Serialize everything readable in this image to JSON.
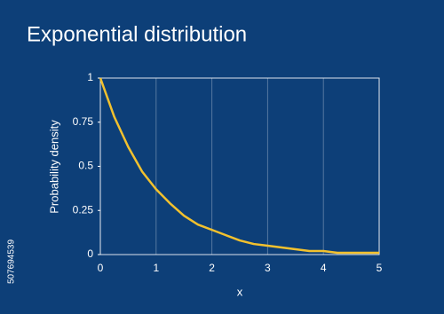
{
  "chart_data": {
    "type": "line",
    "title": "Exponential distribution",
    "x_label": "x",
    "y_label": "Probability density",
    "x": [
      0,
      0.25,
      0.5,
      0.75,
      1,
      1.25,
      1.5,
      1.75,
      2,
      2.25,
      2.5,
      2.75,
      3,
      3.25,
      3.5,
      3.75,
      4,
      4.25,
      4.5,
      4.75,
      5
    ],
    "series": [
      {
        "name": "Probability density",
        "color": "#f2c12e",
        "values": [
          1,
          0.78,
          0.61,
          0.47,
          0.37,
          0.29,
          0.22,
          0.17,
          0.14,
          0.11,
          0.08,
          0.06,
          0.05,
          0.04,
          0.03,
          0.02,
          0.02,
          0.01,
          0.01,
          0.01,
          0.01
        ]
      }
    ],
    "xlim": [
      0,
      5
    ],
    "xticks": [
      0,
      1,
      2,
      3,
      4,
      5
    ],
    "ylim": [
      0,
      1
    ],
    "yticks": [
      0,
      0.25,
      0.5,
      0.75,
      1
    ],
    "grid": "x"
  },
  "watermark_id": "507694539"
}
